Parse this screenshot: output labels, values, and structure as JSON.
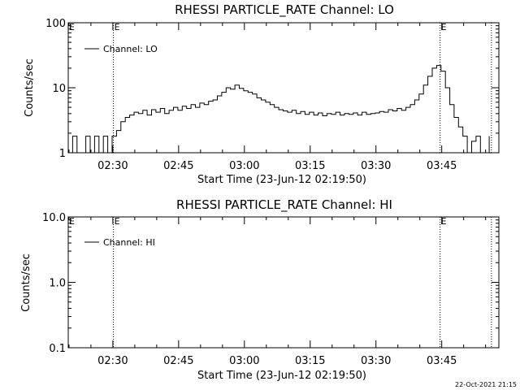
{
  "footer": {
    "timestamp": "22-Oct-2021 21:15"
  },
  "chart_data": [
    {
      "type": "line",
      "title": "RHESSI PARTICLE_RATE Channel: LO",
      "xlabel": "Start Time (23-Jun-12 02:19:50)",
      "ylabel": "Counts/sec",
      "yscale": "log",
      "xlim_minutes_from_start": [
        0,
        98.2
      ],
      "ylim": [
        1,
        100
      ],
      "x_ticks": [
        {
          "minute": 10.17,
          "label": "02:30"
        },
        {
          "minute": 25.17,
          "label": "02:45"
        },
        {
          "minute": 40.17,
          "label": "03:00"
        },
        {
          "minute": 55.17,
          "label": "03:15"
        },
        {
          "minute": 70.17,
          "label": "03:30"
        },
        {
          "minute": 85.17,
          "label": "03:45"
        }
      ],
      "y_ticks": [
        {
          "value": 1,
          "label": "1"
        },
        {
          "value": 10,
          "label": "10"
        },
        {
          "value": 100,
          "label": "100"
        }
      ],
      "vlines": [
        {
          "minute": 10.3,
          "style": "dotted",
          "label": "E"
        },
        {
          "minute": 84.8,
          "style": "dotted",
          "label": "E"
        },
        {
          "minute": 96.5,
          "style": "dotted",
          "label": ""
        }
      ],
      "legend": {
        "entry": "Channel: LO",
        "position": "top-left"
      },
      "grid": false,
      "series": [
        {
          "name": "Channel: LO",
          "x": [
            0,
            1,
            2,
            3,
            4,
            5,
            6,
            7,
            8,
            9,
            10,
            11,
            12,
            13,
            14,
            15,
            16,
            17,
            18,
            19,
            20,
            21,
            22,
            23,
            24,
            25,
            26,
            27,
            28,
            29,
            30,
            31,
            32,
            33,
            34,
            35,
            36,
            37,
            38,
            39,
            40,
            41,
            42,
            43,
            44,
            45,
            46,
            47,
            48,
            49,
            50,
            51,
            52,
            53,
            54,
            55,
            56,
            57,
            58,
            59,
            60,
            61,
            62,
            63,
            64,
            65,
            66,
            67,
            68,
            69,
            70,
            71,
            72,
            73,
            74,
            75,
            76,
            77,
            78,
            79,
            80,
            81,
            82,
            83,
            84,
            85,
            86,
            87,
            88,
            89,
            90,
            91,
            92,
            93,
            94,
            95,
            96
          ],
          "y": [
            1.0,
            1.8,
            1.0,
            1.0,
            1.8,
            1.0,
            1.8,
            1.0,
            1.8,
            1.0,
            1.8,
            2.2,
            3.0,
            3.5,
            3.8,
            4.2,
            4.0,
            4.5,
            3.8,
            4.6,
            4.2,
            4.8,
            4.0,
            4.5,
            5.0,
            4.5,
            5.2,
            4.8,
            5.5,
            5.0,
            5.8,
            5.5,
            6.2,
            6.5,
            7.5,
            8.5,
            10.0,
            9.5,
            11.0,
            9.8,
            9.0,
            8.5,
            8.0,
            7.0,
            6.5,
            6.0,
            5.5,
            5.0,
            4.6,
            4.4,
            4.2,
            4.5,
            4.0,
            4.3,
            3.9,
            4.2,
            3.8,
            4.1,
            3.7,
            4.0,
            3.9,
            4.2,
            3.8,
            4.0,
            3.9,
            4.1,
            3.8,
            4.2,
            3.9,
            4.0,
            4.1,
            4.3,
            4.2,
            4.6,
            4.4,
            4.8,
            4.5,
            5.0,
            5.5,
            6.5,
            8.0,
            11.0,
            15.0,
            20.0,
            22.0,
            18.0,
            10.0,
            5.5,
            3.5,
            2.5,
            1.8,
            1.0,
            1.5,
            1.8,
            1.0,
            1.0,
            1.8
          ]
        }
      ]
    },
    {
      "type": "line",
      "title": "RHESSI PARTICLE_RATE Channel: HI",
      "xlabel": "Start Time (23-Jun-12 02:19:50)",
      "ylabel": "Counts/sec",
      "yscale": "log",
      "xlim_minutes_from_start": [
        0,
        98.2
      ],
      "ylim": [
        0.1,
        10
      ],
      "x_ticks": [
        {
          "minute": 10.17,
          "label": "02:30"
        },
        {
          "minute": 25.17,
          "label": "02:45"
        },
        {
          "minute": 40.17,
          "label": "03:00"
        },
        {
          "minute": 55.17,
          "label": "03:15"
        },
        {
          "minute": 70.17,
          "label": "03:30"
        },
        {
          "minute": 85.17,
          "label": "03:45"
        }
      ],
      "y_ticks": [
        {
          "value": 0.1,
          "label": "0.1"
        },
        {
          "value": 1,
          "label": "1.0"
        },
        {
          "value": 10,
          "label": "10.0"
        }
      ],
      "vlines": [
        {
          "minute": 10.3,
          "style": "dotted",
          "label": "E"
        },
        {
          "minute": 84.8,
          "style": "dotted",
          "label": "E"
        },
        {
          "minute": 96.5,
          "style": "dotted",
          "label": ""
        }
      ],
      "legend": {
        "entry": "Channel: HI",
        "position": "top-left"
      },
      "grid": false,
      "series": [
        {
          "name": "Channel: HI",
          "x": [],
          "y": []
        }
      ]
    }
  ]
}
